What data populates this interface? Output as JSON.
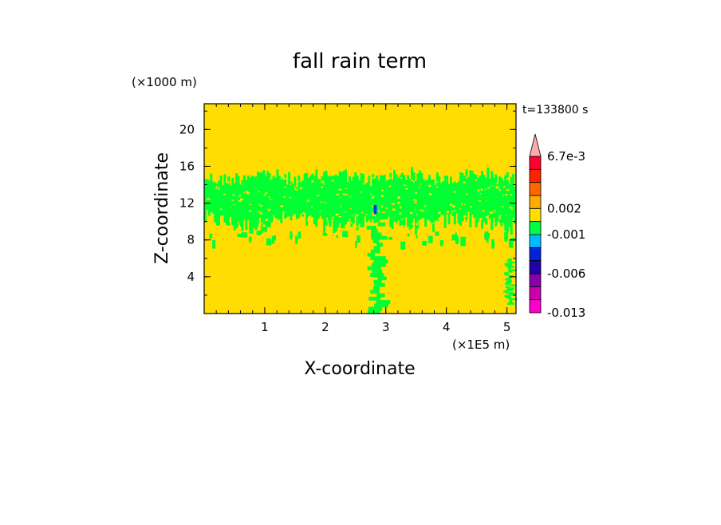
{
  "chart_data": {
    "type": "heatmap",
    "title": "fall rain term",
    "xlabel": "X-coordinate",
    "ylabel": "Z-coordinate",
    "x_unit": "(×1E5 m)",
    "y_unit": "(×1000 m)",
    "time_label": "t=133800 s",
    "xlim": [
      0,
      5.15
    ],
    "ylim": [
      0,
      22.8
    ],
    "x_ticks": [
      1,
      2,
      3,
      4,
      5
    ],
    "y_ticks": [
      4,
      8,
      12,
      16,
      20
    ],
    "background_class_color": "#ffdd00",
    "colorbar": {
      "colors": [
        "#ff00cc",
        "#cc00aa",
        "#8800aa",
        "#2200aa",
        "#0022dd",
        "#00bbff",
        "#00ff44",
        "#ffdd00",
        "#ffaa00",
        "#ff6600",
        "#ff2200",
        "#ff0033",
        "#ffaaaa"
      ],
      "tick_labels": [
        "-0.013",
        "-0.006",
        "-0.001",
        "0.002",
        "6.7e-3"
      ],
      "extend": "max"
    },
    "features": [
      {
        "class": "-0.001 to 0",
        "color": "#00ff33",
        "region": "band",
        "x_range": [
          0,
          5.15
        ],
        "z_range": [
          8.5,
          16
        ]
      },
      {
        "class": "-0.001 to 0",
        "color": "#00ff33",
        "region": "column",
        "x_range": [
          2.7,
          3.1
        ],
        "z_range": [
          0,
          11
        ]
      },
      {
        "class": "-0.001 to 0",
        "color": "#00ff33",
        "region": "column",
        "x_range": [
          4.95,
          5.15
        ],
        "z_range": [
          1,
          6
        ]
      },
      {
        "class": "below -0.001",
        "color": "#0033ff",
        "region": "spot",
        "x_range": [
          2.8,
          2.85
        ],
        "z_range": [
          10.8,
          11.8
        ]
      }
    ]
  }
}
